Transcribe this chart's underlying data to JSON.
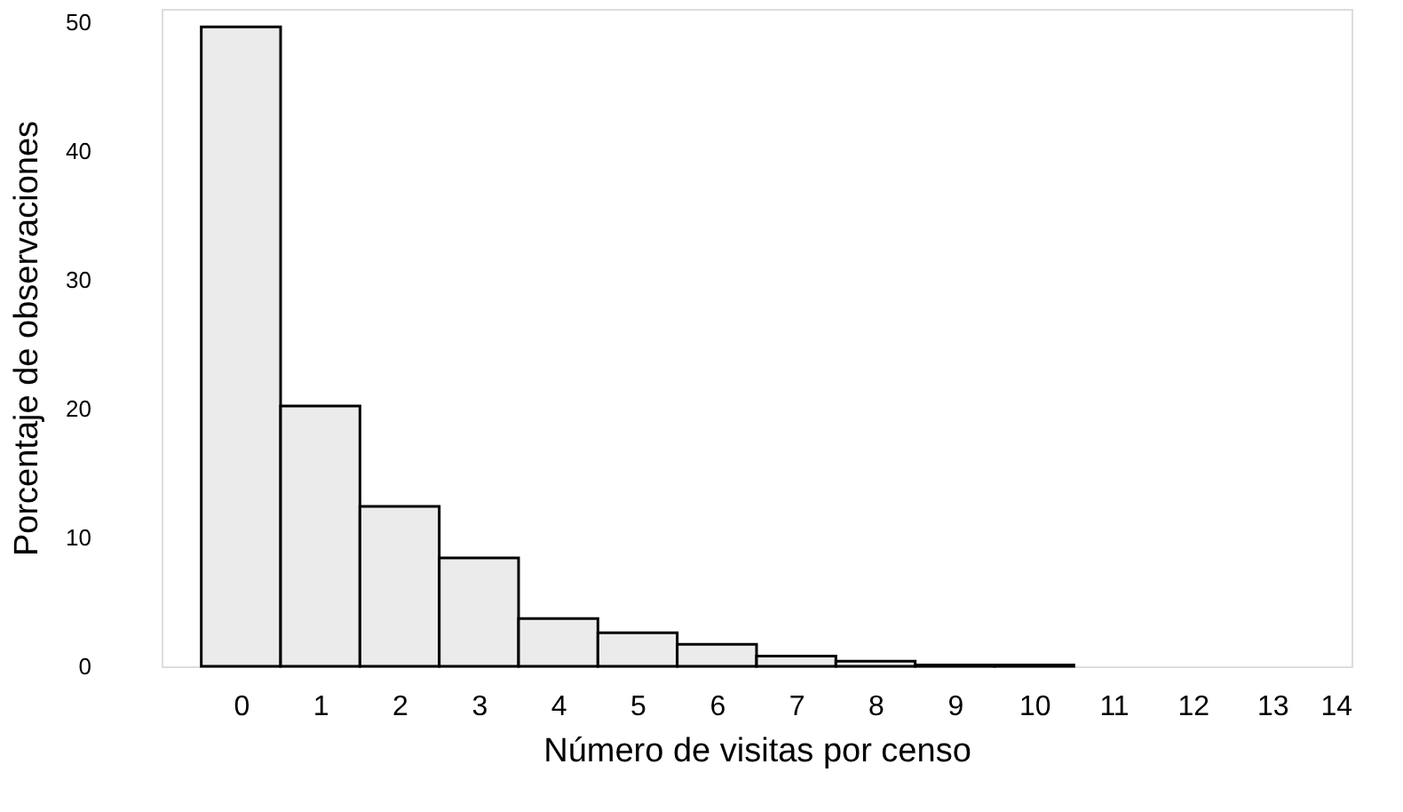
{
  "chart_data": {
    "type": "bar",
    "xlabel": "Número de visitas por censo",
    "ylabel": "Porcentaje de observaciones",
    "x": [
      0,
      1,
      2,
      3,
      4,
      5,
      6,
      7,
      8,
      9,
      10
    ],
    "values": [
      49.6,
      20.2,
      12.4,
      8.4,
      3.7,
      2.6,
      1.7,
      0.8,
      0.4,
      0.1,
      0.1
    ],
    "color": "#ebebeb",
    "xlim": [
      -1,
      14
    ],
    "xticks": [
      0,
      1,
      2,
      3,
      4,
      5,
      6,
      7,
      8,
      9,
      10,
      11,
      12,
      13,
      14
    ],
    "ylim": [
      0,
      51
    ],
    "yticks": [
      0,
      10,
      20,
      30,
      40,
      50
    ],
    "grid": false
  }
}
